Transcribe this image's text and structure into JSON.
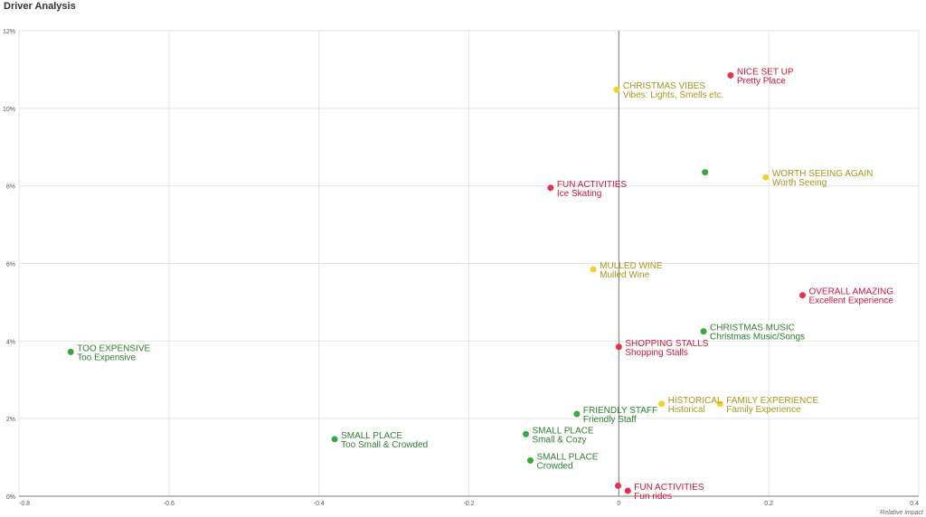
{
  "title": "Driver Analysis",
  "chart_data": {
    "type": "scatter",
    "xlabel": "Relative impact",
    "xlim": [
      -0.8,
      0.4
    ],
    "ylim": [
      0,
      12
    ],
    "x_ticks": [
      "-0.8",
      "-0.6",
      "-0.4",
      "-0.2",
      "0",
      "0.2",
      "0.4"
    ],
    "y_ticks": [
      "0%",
      "2%",
      "4%",
      "6%",
      "8%",
      "10%",
      "12%"
    ],
    "grid": true,
    "colors": {
      "red": "#e8304f",
      "yellow": "#f5d22a",
      "green": "#3aa83a",
      "red_text": "#c8163a",
      "yellow_text": "#a8951a",
      "green_text": "#2e7d2e"
    },
    "points": [
      {
        "x": 0.149,
        "y": 10.85,
        "color": "red",
        "label1": "NICE SET UP",
        "label2": "Pretty Place"
      },
      {
        "x": -0.003,
        "y": 10.48,
        "color": "yellow",
        "label1": "CHRISTMAS VIBES",
        "label2": "Vibes: Lights, Smells etc."
      },
      {
        "x": 0.115,
        "y": 8.35,
        "color": "green",
        "label1": "",
        "label2": ""
      },
      {
        "x": 0.196,
        "y": 8.22,
        "color": "yellow",
        "label1": "WORTH SEEING AGAIN",
        "label2": "Worth Seeing"
      },
      {
        "x": -0.091,
        "y": 7.95,
        "color": "red",
        "label1": "FUN ACTIVITIES",
        "label2": "Ice Skating"
      },
      {
        "x": -0.034,
        "y": 5.85,
        "color": "yellow",
        "label1": "MULLED WINE",
        "label2": "Mulled Wine"
      },
      {
        "x": 0.245,
        "y": 5.18,
        "color": "red",
        "label1": "OVERALL AMAZING",
        "label2": "Excellent Experience"
      },
      {
        "x": 0.113,
        "y": 4.25,
        "color": "green",
        "label1": "CHRISTMAS MUSIC",
        "label2": "Christmas Music/Songs"
      },
      {
        "x": 0.0,
        "y": 3.85,
        "color": "red",
        "label1": "SHOPPING STALLS",
        "label2": "Shopping Stalls"
      },
      {
        "x": -0.731,
        "y": 3.72,
        "color": "green",
        "label1": "TOO EXPENSIVE",
        "label2": "Too Expensive"
      },
      {
        "x": 0.057,
        "y": 2.38,
        "color": "yellow",
        "label1": "HISTORICAL",
        "label2": "Historical"
      },
      {
        "x": 0.135,
        "y": 2.38,
        "color": "yellow",
        "label1": "FAMILY EXPERIENCE",
        "label2": "Family Experience"
      },
      {
        "x": -0.056,
        "y": 2.12,
        "color": "green",
        "label1": "FRIENDLY STAFF",
        "label2": "Friendly Staff"
      },
      {
        "x": -0.124,
        "y": 1.6,
        "color": "green",
        "label1": "SMALL PLACE",
        "label2": "Small & Cozy"
      },
      {
        "x": -0.379,
        "y": 1.47,
        "color": "green",
        "label1": "SMALL PLACE",
        "label2": "Too Small & Crowded"
      },
      {
        "x": -0.118,
        "y": 0.92,
        "color": "green",
        "label1": "SMALL PLACE",
        "label2": "Crowded"
      },
      {
        "x": -0.001,
        "y": 0.27,
        "color": "red",
        "label1": "",
        "label2": ""
      },
      {
        "x": 0.012,
        "y": 0.14,
        "color": "red",
        "label1": "FUN ACTIVITIES",
        "label2": "Fun rides"
      }
    ]
  }
}
